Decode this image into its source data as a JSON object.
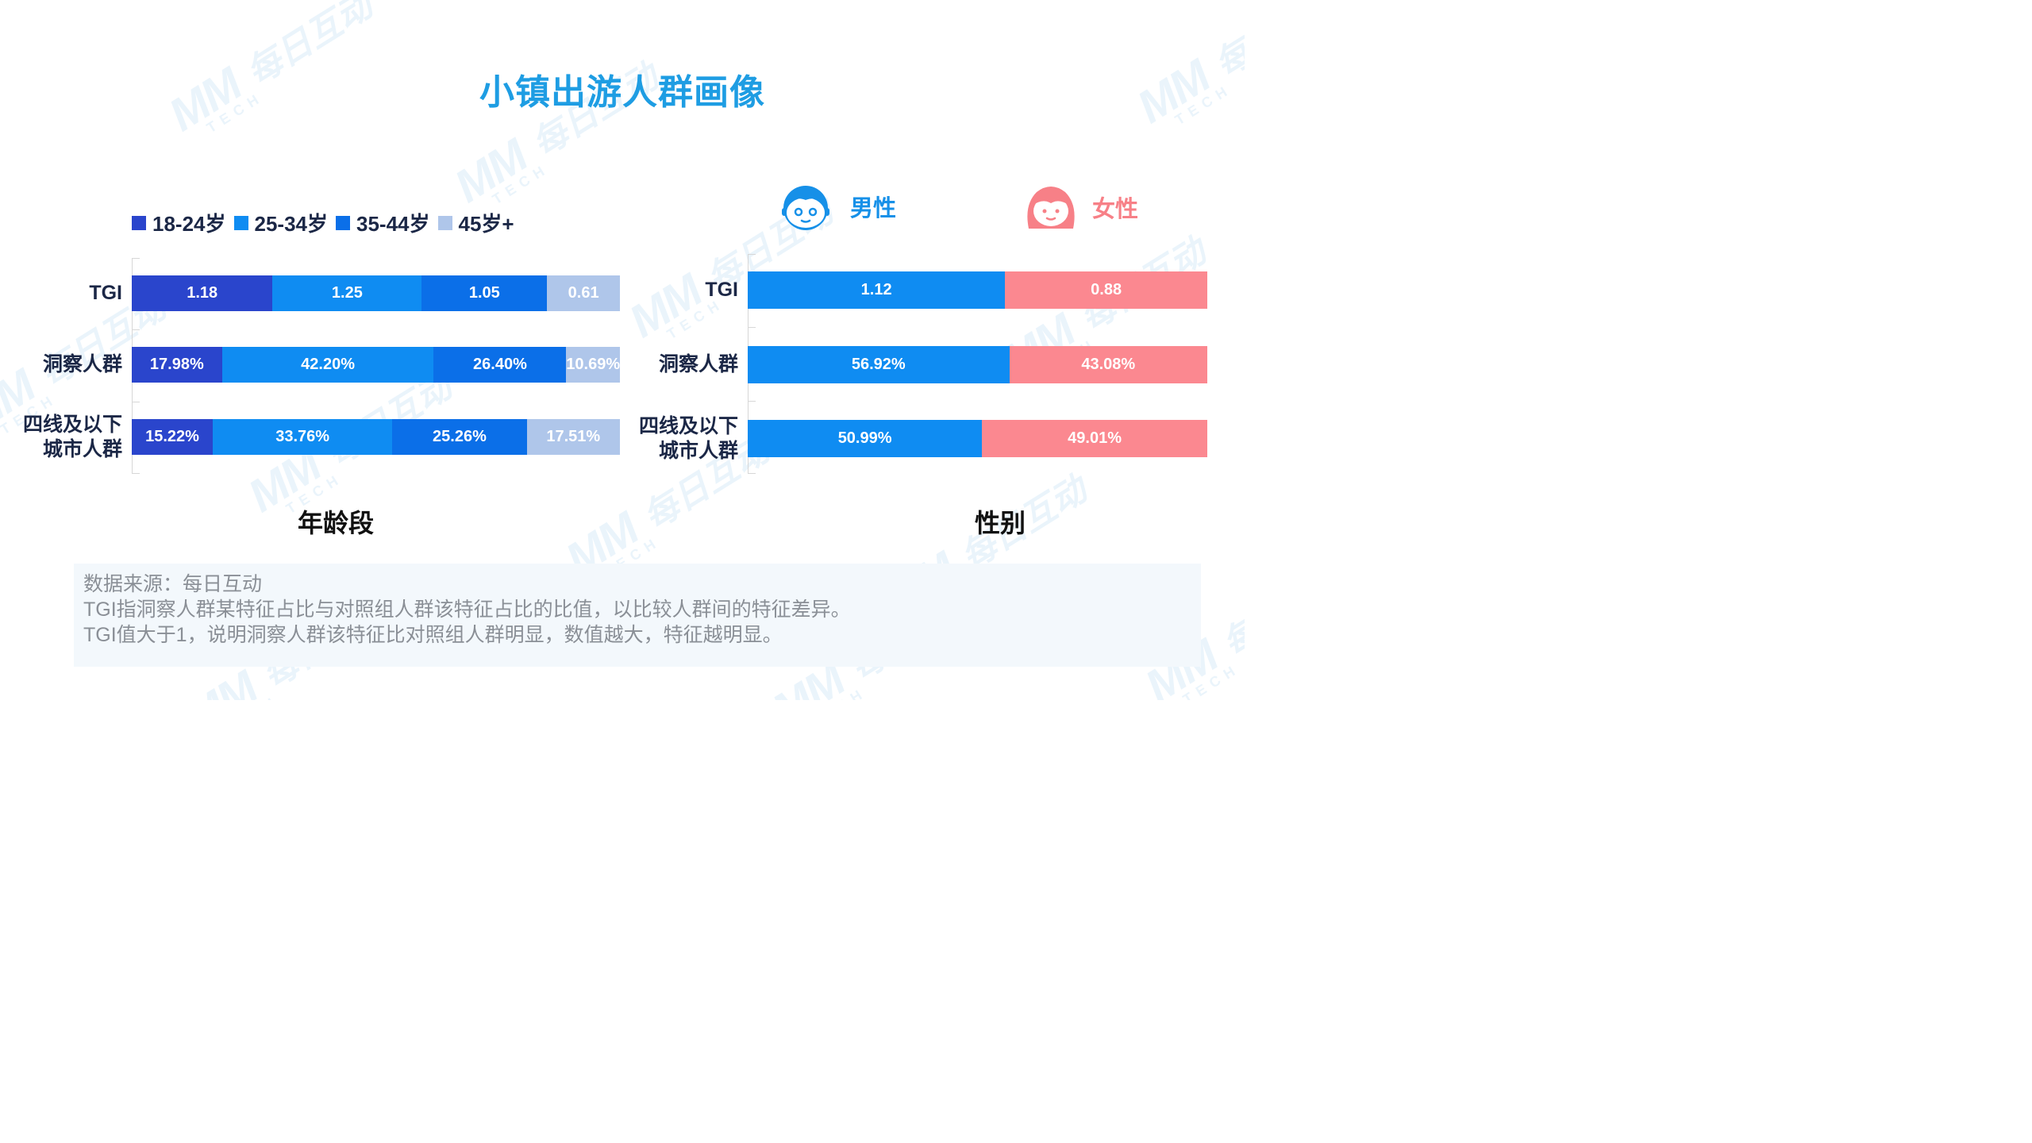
{
  "title": "小镇出游人群画像",
  "watermark": {
    "logo": "MM",
    "text": "每日互动",
    "tech": "TECH"
  },
  "colors": {
    "title": "#1e9de3",
    "age_18_24": "#2a45cc",
    "age_25_34": "#0f8cf2",
    "age_35_44": "#0b6fe8",
    "age_45_plus": "#afc6ea",
    "male": "#0f8cf2",
    "female": "#fb8890",
    "male_label": "#1690e8",
    "female_label": "#f78087"
  },
  "icons": {
    "male": "boy-face-icon",
    "female": "girl-face-icon"
  },
  "chart_data": [
    {
      "type": "bar",
      "orientation": "horizontal",
      "stacked": true,
      "title": "年龄段",
      "categories": [
        "TGI",
        "洞察人群",
        "四线及以下城市人群"
      ],
      "category_labels": [
        "TGI",
        "洞察人群",
        "四线及以下\n城市人群"
      ],
      "legend_position": "top-left",
      "series": [
        {
          "name": "18-24岁",
          "values": [
            1.18,
            17.98,
            15.22
          ],
          "labels": [
            "1.18",
            "17.98%",
            "15.22%"
          ]
        },
        {
          "name": "25-34岁",
          "values": [
            1.25,
            42.2,
            33.76
          ],
          "labels": [
            "1.25",
            "42.20%",
            "33.76%"
          ]
        },
        {
          "name": "35-44岁",
          "values": [
            1.05,
            26.4,
            25.26
          ],
          "labels": [
            "1.05",
            "26.40%",
            "25.26%"
          ]
        },
        {
          "name": "45岁+",
          "values": [
            0.61,
            10.69,
            17.51
          ],
          "labels": [
            "0.61",
            "10.69%",
            "17.51%"
          ]
        }
      ]
    },
    {
      "type": "bar",
      "orientation": "horizontal",
      "stacked": true,
      "title": "性别",
      "categories": [
        "TGI",
        "洞察人群",
        "四线及以下城市人群"
      ],
      "category_labels": [
        "TGI",
        "洞察人群",
        "四线及以下\n城市人群"
      ],
      "legend_position": "top",
      "series": [
        {
          "name": "男性",
          "values": [
            1.12,
            56.92,
            50.99
          ],
          "labels": [
            "1.12",
            "56.92%",
            "50.99%"
          ]
        },
        {
          "name": "女性",
          "values": [
            0.88,
            43.08,
            49.01
          ],
          "labels": [
            "0.88",
            "43.08%",
            "49.01%"
          ]
        }
      ]
    }
  ],
  "notes": [
    "数据来源：每日互动",
    "TGI指洞察人群某特征占比与对照组人群该特征占比的比值，以比较人群间的特征差异。",
    "TGI值大于1，说明洞察人群该特征比对照组人群明显，数值越大，特征越明显。"
  ]
}
